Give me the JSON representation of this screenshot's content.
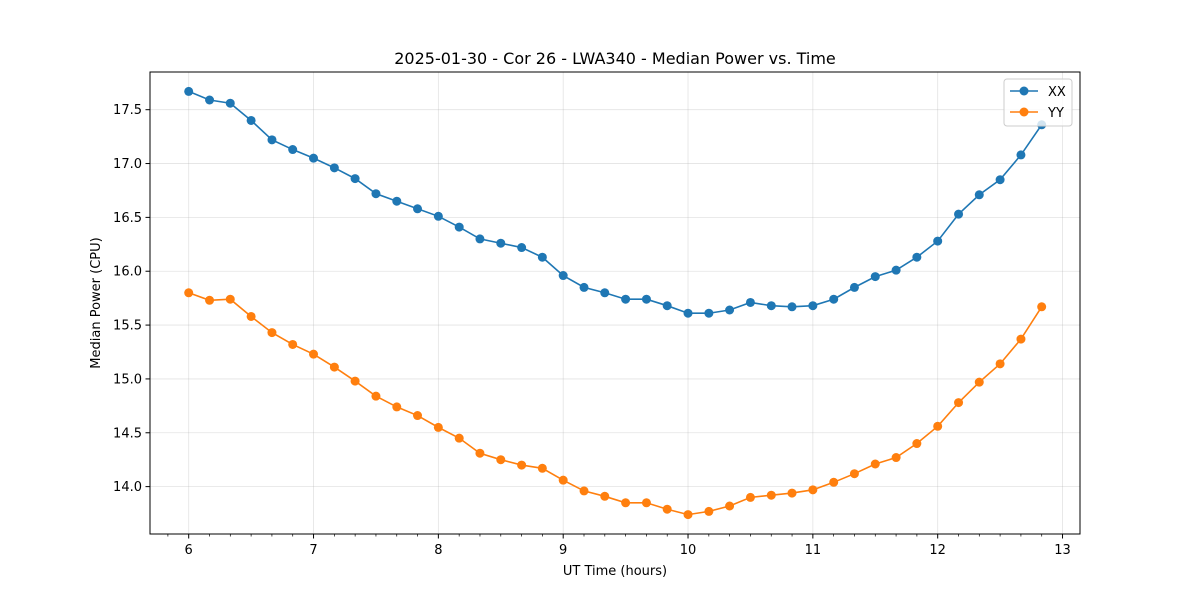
{
  "chart_data": {
    "type": "line",
    "title": "2025-01-30 - Cor 26 - LWA340 - Median Power vs. Time",
    "xlabel": "UT Time (hours)",
    "ylabel": "Median Power (CPU)",
    "xlim": [
      5.69,
      13.14
    ],
    "ylim": [
      13.56,
      17.85
    ],
    "xticks": [
      6,
      7,
      8,
      9,
      10,
      11,
      12,
      13
    ],
    "yticks": [
      14.0,
      14.5,
      15.0,
      15.5,
      16.0,
      16.5,
      17.0,
      17.5
    ],
    "grid": true,
    "legend_position": "top-right",
    "x": [
      6.0,
      6.167,
      6.333,
      6.5,
      6.667,
      6.833,
      7.0,
      7.167,
      7.333,
      7.5,
      7.667,
      7.833,
      8.0,
      8.167,
      8.333,
      8.5,
      8.667,
      8.833,
      9.0,
      9.167,
      9.333,
      9.5,
      9.667,
      9.833,
      10.0,
      10.167,
      10.333,
      10.5,
      10.667,
      10.833,
      11.0,
      11.167,
      11.333,
      11.5,
      11.667,
      11.833,
      12.0,
      12.167,
      12.333,
      12.5,
      12.667,
      12.833
    ],
    "series": [
      {
        "name": "XX",
        "color": "#1f77b4",
        "values": [
          17.67,
          17.59,
          17.56,
          17.4,
          17.22,
          17.13,
          17.05,
          16.96,
          16.86,
          16.72,
          16.65,
          16.58,
          16.51,
          16.41,
          16.3,
          16.26,
          16.22,
          16.13,
          15.96,
          15.85,
          15.8,
          15.74,
          15.74,
          15.68,
          15.61,
          15.61,
          15.64,
          15.71,
          15.68,
          15.67,
          15.68,
          15.74,
          15.85,
          15.95,
          16.01,
          16.13,
          16.28,
          16.53,
          16.71,
          16.85,
          17.08,
          17.36
        ]
      },
      {
        "name": "YY",
        "color": "#ff7f0e",
        "values": [
          15.8,
          15.73,
          15.74,
          15.58,
          15.43,
          15.32,
          15.23,
          15.11,
          14.98,
          14.84,
          14.74,
          14.66,
          14.55,
          14.45,
          14.31,
          14.25,
          14.2,
          14.17,
          14.06,
          13.96,
          13.91,
          13.85,
          13.85,
          13.79,
          13.74,
          13.77,
          13.82,
          13.9,
          13.92,
          13.94,
          13.97,
          14.04,
          14.12,
          14.21,
          14.27,
          14.4,
          14.56,
          14.78,
          14.97,
          15.14,
          15.37,
          15.67
        ]
      }
    ]
  }
}
